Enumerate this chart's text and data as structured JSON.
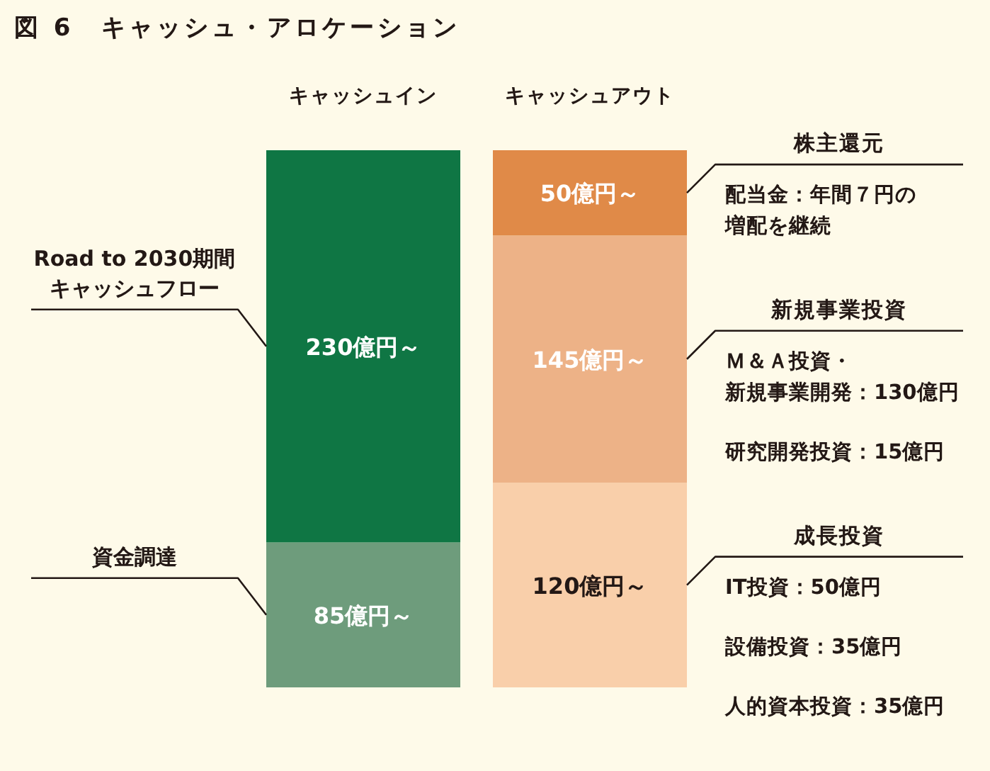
{
  "chart_data": {
    "type": "bar",
    "stacked": true,
    "legend": false,
    "title": "図 6　キャッシュ・アロケーション",
    "categories": [
      "キャッシュイン",
      "キャッシュアウト"
    ],
    "series": [
      {
        "name": "資金調達",
        "color": "#6e9c7c",
        "values": [
          85,
          null
        ],
        "value_labels": [
          "85億円～",
          null
        ]
      },
      {
        "name": "Road to 2030期間キャッシュフロー",
        "color": "#0f7644",
        "values": [
          230,
          null
        ],
        "value_labels": [
          "230億円～",
          null
        ]
      },
      {
        "name": "成長投資",
        "color": "#f9cfaa",
        "values": [
          null,
          120
        ],
        "value_labels": [
          null,
          "120億円～"
        ]
      },
      {
        "name": "新規事業投資",
        "color": "#edb287",
        "values": [
          null,
          145
        ],
        "value_labels": [
          null,
          "145億円～"
        ]
      },
      {
        "name": "株主還元",
        "color": "#e08a48",
        "values": [
          null,
          50
        ],
        "value_labels": [
          null,
          "50億円～"
        ]
      }
    ],
    "annotations": [
      "配当金：年間７円の増配を継続",
      "Ｍ＆Ａ投資・新規事業開発：130億円",
      "研究開発投資：15億円",
      "IT投資：50億円",
      "設備投資：35億円",
      "人的資本投資：35億円"
    ]
  }
}
